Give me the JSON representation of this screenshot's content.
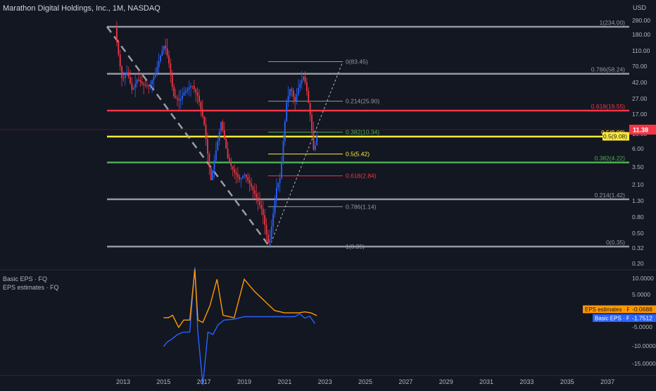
{
  "header": {
    "title": "Marathon Digital Holdings, Inc., 1M, NASDAQ",
    "currency": "USD"
  },
  "price_panel": {
    "last_price_label": "11.38",
    "y_ticks": [
      "280.00",
      "180.00",
      "110.00",
      "70.00",
      "42.00",
      "27.00",
      "17.00",
      "6.00",
      "3.50",
      "2.10",
      "1.30",
      "0.80",
      "0.50",
      "0.32",
      "0.20"
    ],
    "partial_tick": "10.00"
  },
  "x_axis": {
    "labels": [
      "2013",
      "2015",
      "2017",
      "2019",
      "2021",
      "2023",
      "2025",
      "2027",
      "2029",
      "2031",
      "2033",
      "2035",
      "2037"
    ]
  },
  "fib_large": {
    "levels": [
      {
        "label": "1(234.00)",
        "price": 234.0,
        "color": "#9598a1",
        "label_color": "#9598a1"
      },
      {
        "label": "0.786(58.24)",
        "price": 58.24,
        "color": "#9598a1",
        "label_color": "#9598a1"
      },
      {
        "label": "0.618(19.55)",
        "price": 19.55,
        "color": "#f23645",
        "label_color": "#f23645"
      },
      {
        "label": "0.5(9.08)",
        "price": 9.08,
        "color": "#ffeb3b",
        "label_color": "#ffeb3b"
      },
      {
        "label": "0.382(4.22)",
        "price": 4.22,
        "color": "#4caf50",
        "label_color": "#4caf50"
      },
      {
        "label": "0.214(1.42)",
        "price": 1.42,
        "color": "#9598a1",
        "label_color": "#9598a1"
      },
      {
        "label": "0(0.35)",
        "price": 0.35,
        "color": "#9598a1",
        "label_color": "#9598a1"
      }
    ]
  },
  "fib_small": {
    "levels": [
      {
        "label": "0(83.45)",
        "price": 83.45,
        "color": "#9598a1"
      },
      {
        "label": "0.214(25.90)",
        "price": 25.9,
        "color": "#9598a1"
      },
      {
        "label": "0.382(10.34)",
        "price": 10.34,
        "color": "#4caf50"
      },
      {
        "label": "0.5(5.42)",
        "price": 5.42,
        "color": "#ffeb3b"
      },
      {
        "label": "0.618(2.84)",
        "price": 2.84,
        "color": "#f23645"
      },
      {
        "label": "0.786(1.14)",
        "price": 1.14,
        "color": "#9598a1"
      },
      {
        "label": "1(0.35)",
        "price": 0.35,
        "color": "#9598a1"
      }
    ]
  },
  "eps_panel": {
    "legend": [
      "Basic EPS · FQ",
      "EPS estimates · FQ"
    ],
    "y_ticks": [
      "10.0000",
      "5.0000",
      "-5.0000",
      "-10.0000",
      "-15.0000"
    ],
    "estimate_tag": {
      "label": "EPS estimates · FQ",
      "value": "-0.0688",
      "color": "#ff9800"
    },
    "basic_tag": {
      "label": "Basic EPS · FQ",
      "value": "-1.7512",
      "color": "#2962ff"
    }
  },
  "chart_data": [
    {
      "type": "candlestick",
      "title": "Marathon Digital Holdings, Inc., 1M, NASDAQ",
      "y_scale": "log",
      "ylim": [
        0.2,
        280
      ],
      "xlim": [
        2012.0,
        2038.3
      ],
      "grid": false,
      "down_color": "#f23645",
      "up_color": "#2962ff",
      "approx_path": [
        {
          "x": 2012.6,
          "y": 234
        },
        {
          "x": 2012.75,
          "y": 110
        },
        {
          "x": 2012.95,
          "y": 48
        },
        {
          "x": 2013.2,
          "y": 62
        },
        {
          "x": 2013.45,
          "y": 35
        },
        {
          "x": 2013.7,
          "y": 50
        },
        {
          "x": 2014.0,
          "y": 42
        },
        {
          "x": 2014.3,
          "y": 40
        },
        {
          "x": 2014.6,
          "y": 60
        },
        {
          "x": 2014.9,
          "y": 110
        },
        {
          "x": 2015.05,
          "y": 140
        },
        {
          "x": 2015.25,
          "y": 85
        },
        {
          "x": 2015.5,
          "y": 30
        },
        {
          "x": 2015.8,
          "y": 26
        },
        {
          "x": 2016.0,
          "y": 33
        },
        {
          "x": 2016.4,
          "y": 42
        },
        {
          "x": 2016.7,
          "y": 30
        },
        {
          "x": 2017.0,
          "y": 14
        },
        {
          "x": 2017.2,
          "y": 5
        },
        {
          "x": 2017.35,
          "y": 2.5
        },
        {
          "x": 2017.6,
          "y": 6
        },
        {
          "x": 2017.85,
          "y": 14
        },
        {
          "x": 2018.0,
          "y": 9
        },
        {
          "x": 2018.2,
          "y": 4.5
        },
        {
          "x": 2018.5,
          "y": 3.2
        },
        {
          "x": 2018.8,
          "y": 2.5
        },
        {
          "x": 2019.0,
          "y": 3.0
        },
        {
          "x": 2019.3,
          "y": 2.2
        },
        {
          "x": 2019.6,
          "y": 1.5
        },
        {
          "x": 2019.9,
          "y": 1.0
        },
        {
          "x": 2020.1,
          "y": 0.5
        },
        {
          "x": 2020.22,
          "y": 0.35
        },
        {
          "x": 2020.45,
          "y": 1.0
        },
        {
          "x": 2020.6,
          "y": 2.0
        },
        {
          "x": 2020.8,
          "y": 2.8
        },
        {
          "x": 2020.95,
          "y": 9
        },
        {
          "x": 2021.1,
          "y": 25
        },
        {
          "x": 2021.3,
          "y": 40
        },
        {
          "x": 2021.5,
          "y": 25
        },
        {
          "x": 2021.7,
          "y": 40
        },
        {
          "x": 2021.95,
          "y": 55
        },
        {
          "x": 2022.1,
          "y": 35
        },
        {
          "x": 2022.3,
          "y": 15
        },
        {
          "x": 2022.45,
          "y": 5.5
        },
        {
          "x": 2022.65,
          "y": 11.38
        }
      ]
    },
    {
      "type": "line",
      "series": [
        {
          "name": "Basic EPS · FQ",
          "color": "#2962ff",
          "x": [
            2015.0,
            2015.2,
            2015.4,
            2015.7,
            2016.0,
            2016.3,
            2016.55,
            2016.7,
            2016.95,
            2017.2,
            2017.45,
            2017.7,
            2018.0,
            2018.5,
            2019.0,
            2019.5,
            2020.0,
            2020.5,
            2021.0,
            2021.5,
            2021.75,
            2022.0,
            2022.25,
            2022.5
          ],
          "y": [
            -6.5,
            -5.5,
            -5,
            -4,
            -3.5,
            -3.5,
            10,
            -3.5,
            -14.5,
            -3.5,
            -4,
            -2,
            -1,
            -0.8,
            -0.3,
            -0.3,
            -0.3,
            -0.3,
            -0.3,
            -0.3,
            0.3,
            -0.6,
            -0.2,
            -1.75
          ]
        },
        {
          "name": "EPS estimates · FQ",
          "color": "#ff9800",
          "x": [
            2015.0,
            2015.25,
            2015.45,
            2015.75,
            2016.0,
            2016.3,
            2016.55,
            2016.7,
            2016.95,
            2017.3,
            2017.65,
            2017.95,
            2018.5,
            2019.0,
            2019.5,
            2020.0,
            2020.5,
            2021.0,
            2021.3,
            2021.7,
            2022.0,
            2022.3,
            2022.6
          ],
          "y": [
            -0.5,
            -0.5,
            0,
            -2.5,
            -1,
            -1,
            9.5,
            -1,
            -1.5,
            2,
            7.5,
            0,
            -0.5,
            7.5,
            5,
            3,
            1,
            0.5,
            0.5,
            0.5,
            0.7,
            0.5,
            -0.07
          ]
        }
      ],
      "ylim": [
        -17,
        11
      ],
      "legend": "top-left"
    }
  ]
}
